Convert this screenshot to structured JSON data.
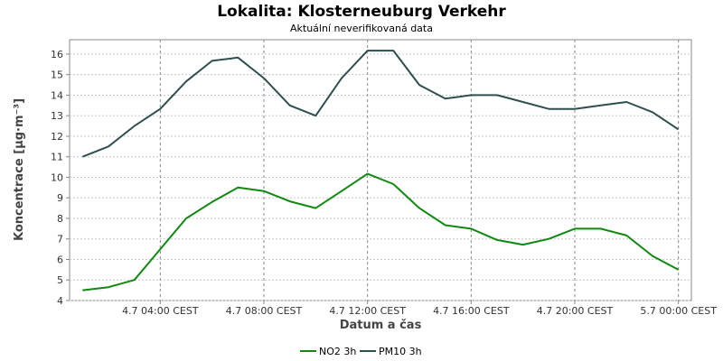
{
  "chart_data": {
    "type": "line",
    "title": "Lokalita: Klosterneuburg Verkehr",
    "subtitle": "Aktuální neverifikovaná data",
    "xlabel": "Datum a čas",
    "ylabel": "Koncentrace [µg·m⁻³]",
    "ylim": [
      4,
      16.7
    ],
    "yticks": [
      4,
      5,
      6,
      7,
      8,
      9,
      10,
      11,
      12,
      13,
      14,
      15,
      16
    ],
    "xlim": [
      0.5,
      24.5
    ],
    "xticks": [
      {
        "x": 4,
        "label": "4.7 04:00 CEST"
      },
      {
        "x": 8,
        "label": "4.7 08:00 CEST"
      },
      {
        "x": 12,
        "label": "4.7 12:00 CEST"
      },
      {
        "x": 16,
        "label": "4.7 16:00 CEST"
      },
      {
        "x": 20,
        "label": "4.7 20:00 CEST"
      },
      {
        "x": 24,
        "label": "5.7 00:00 CEST"
      }
    ],
    "grid": true,
    "legend_position": "bottom",
    "x": [
      1,
      2,
      3,
      4,
      5,
      6,
      7,
      8,
      9,
      10,
      11,
      12,
      13,
      14,
      15,
      16,
      17,
      18,
      19,
      20,
      21,
      22,
      23,
      24
    ],
    "series": [
      {
        "name": "NO2 3h",
        "color": "#118811",
        "values": [
          4.5,
          4.65,
          5.0,
          6.5,
          8.0,
          8.8,
          9.5,
          9.33,
          8.83,
          8.5,
          9.33,
          10.17,
          9.67,
          8.5,
          7.67,
          7.5,
          6.95,
          6.72,
          7.0,
          7.5,
          7.5,
          7.17,
          6.17,
          5.5
        ]
      },
      {
        "name": "PM10 3h",
        "color": "#2f4f4f",
        "values": [
          11.0,
          11.5,
          12.5,
          13.33,
          14.67,
          15.67,
          15.83,
          14.83,
          13.5,
          13.0,
          14.83,
          16.17,
          16.17,
          14.5,
          13.83,
          14.0,
          14.0,
          13.67,
          13.33,
          13.33,
          13.5,
          13.67,
          13.17,
          12.33
        ]
      }
    ]
  }
}
